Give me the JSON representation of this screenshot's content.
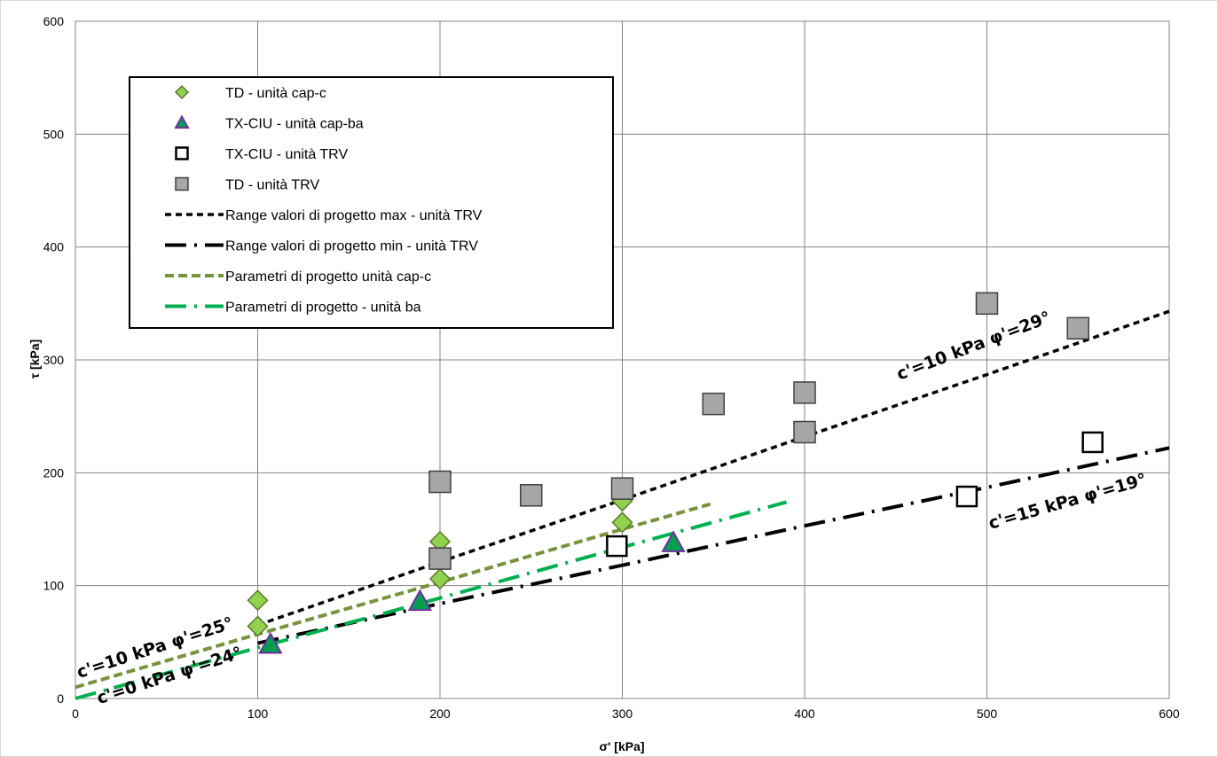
{
  "chart_data": {
    "type": "scatter",
    "title": "",
    "xlabel": "σ' [kPa]",
    "ylabel": "τ [kPa]",
    "xlim": [
      0,
      600
    ],
    "ylim": [
      0,
      600
    ],
    "xticks": [
      0,
      100,
      200,
      300,
      400,
      500,
      600
    ],
    "yticks": [
      0,
      100,
      200,
      300,
      400,
      500,
      600
    ],
    "grid": true,
    "legend_position": "top-left",
    "series": [
      {
        "name": "TD - unità cap-c",
        "kind": "marker",
        "marker": "diamond",
        "color": "#92D050",
        "stroke": "#5a7a2a",
        "points": [
          [
            100,
            87
          ],
          [
            100,
            64
          ],
          [
            200,
            139
          ],
          [
            200,
            106
          ],
          [
            300,
            175
          ],
          [
            300,
            156
          ]
        ]
      },
      {
        "name": "TX-CIU - unità cap-ba",
        "kind": "marker",
        "marker": "triangle",
        "color": "#00A050",
        "stroke": "#7030A0",
        "points": [
          [
            107,
            48
          ],
          [
            189,
            86
          ],
          [
            328,
            138
          ]
        ]
      },
      {
        "name": "TX-CIU - unità TRV",
        "kind": "marker",
        "marker": "square-open",
        "color": "#ffffff",
        "stroke": "#000000",
        "points": [
          [
            297,
            135
          ],
          [
            489,
            179
          ],
          [
            558,
            227
          ]
        ]
      },
      {
        "name": "TD - unità TRV",
        "kind": "marker",
        "marker": "square",
        "color": "#A6A6A6",
        "stroke": "#404040",
        "points": [
          [
            200,
            192
          ],
          [
            200,
            124
          ],
          [
            250,
            180
          ],
          [
            300,
            186
          ],
          [
            350,
            261
          ],
          [
            400,
            271
          ],
          [
            400,
            236
          ],
          [
            500,
            350
          ],
          [
            550,
            328
          ]
        ]
      },
      {
        "name": "Range valori di progetto max -  unità TRV",
        "kind": "line",
        "dash": "short",
        "color": "#000000",
        "points": [
          [
            100,
            65
          ],
          [
            200,
            121
          ],
          [
            300,
            176
          ],
          [
            400,
            232
          ],
          [
            500,
            287
          ],
          [
            600,
            343
          ]
        ]
      },
      {
        "name": "Range valori di progetto min - unità TRV",
        "kind": "line",
        "dash": "long-dash-dot",
        "color": "#000000",
        "points": [
          [
            100,
            49
          ],
          [
            200,
            84
          ],
          [
            300,
            118
          ],
          [
            400,
            153
          ],
          [
            500,
            187
          ],
          [
            600,
            222
          ]
        ]
      },
      {
        "name": "Parametri di progetto unità cap-c",
        "kind": "line",
        "dash": "medium",
        "color": "#77933C",
        "points": [
          [
            0,
            10
          ],
          [
            100,
            57
          ],
          [
            200,
            103
          ],
          [
            300,
            150
          ],
          [
            350,
            173
          ]
        ]
      },
      {
        "name": "Parametri di progetto - unità ba",
        "kind": "line",
        "dash": "long-dash-dot",
        "color": "#00B050",
        "points": [
          [
            0,
            0
          ],
          [
            100,
            45
          ],
          [
            200,
            89
          ],
          [
            300,
            134
          ],
          [
            390,
            174
          ]
        ]
      }
    ],
    "annotations": [
      {
        "text": "c'=10 kPa φ'=29°",
        "at": [
          452,
          282
        ],
        "angle": -21
      },
      {
        "text": "c'=15 kPa φ'=19°",
        "at": [
          502,
          150
        ],
        "angle": -16
      },
      {
        "text": "c'=10 kPa φ'=25°",
        "at": [
          2,
          18
        ],
        "angle": -18
      },
      {
        "text": "c'=0 kPa φ'=24°",
        "at": [
          13,
          -5
        ],
        "angle": -18
      }
    ]
  }
}
